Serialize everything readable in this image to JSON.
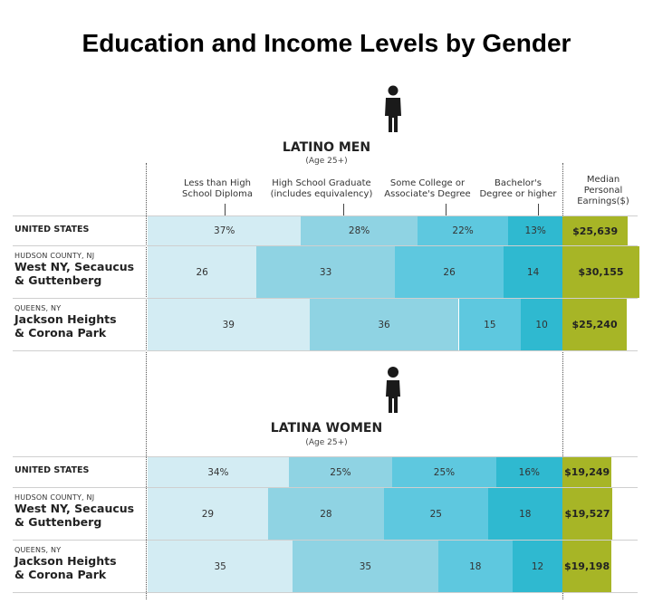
{
  "title": "Education and Income Levels by Gender",
  "colors": {
    "seg": [
      "#d3ecf3",
      "#8fd3e3",
      "#5ec8df",
      "#2fb9d0"
    ],
    "earnings": "#a7b526"
  },
  "headers": {
    "categories": [
      "Less than High School Diploma",
      "High School Graduate (includes equivalency)",
      "Some College or Associate's Degree",
      "Bachelor's Degree or higher"
    ],
    "categories_lines": [
      [
        "Less than High",
        "School Diploma"
      ],
      [
        "High School Graduate",
        "(includes equivalency)"
      ],
      [
        "Some College or",
        "Associate's Degree"
      ],
      [
        "Bachelor's",
        "Degree or higher"
      ]
    ],
    "earnings_lines": [
      "Median",
      "Personal",
      "Earnings($)"
    ]
  },
  "chart_data": [
    {
      "type": "bar",
      "title": "LATINO MEN",
      "subtitle": "(Age 25+)",
      "icon": "man-icon",
      "categories": [
        "Less than High School Diploma",
        "High School Graduate (includes equivalency)",
        "Some College or Associate's Degree",
        "Bachelor's Degree or higher"
      ],
      "rows": [
        {
          "region": "",
          "name_lines": [
            "UNITED STATES"
          ],
          "values": [
            37,
            28,
            22,
            13
          ],
          "labels": [
            "37%",
            "28%",
            "22%",
            "13%"
          ],
          "earnings": 25639,
          "earnings_label": "$25,639"
        },
        {
          "region": "HUDSON COUNTY, NJ",
          "name_lines": [
            "West NY, Secaucus",
            "& Guttenberg"
          ],
          "values": [
            26,
            33,
            26,
            14
          ],
          "labels": [
            "26",
            "33",
            "26",
            "14"
          ],
          "earnings": 30155,
          "earnings_label": "$30,155"
        },
        {
          "region": "QUEENS, NY",
          "name_lines": [
            "Jackson Heights",
            "& Corona Park"
          ],
          "values": [
            39,
            36,
            15,
            10
          ],
          "labels": [
            "39",
            "36",
            "15",
            "10"
          ],
          "earnings": 25240,
          "earnings_label": "$25,240"
        }
      ]
    },
    {
      "type": "bar",
      "title": "LATINA WOMEN",
      "subtitle": "(Age 25+)",
      "icon": "woman-icon",
      "categories": [
        "Less than High School Diploma",
        "High School Graduate (includes equivalency)",
        "Some College or Associate's Degree",
        "Bachelor's Degree or higher"
      ],
      "rows": [
        {
          "region": "",
          "name_lines": [
            "UNITED STATES"
          ],
          "values": [
            34,
            25,
            25,
            16
          ],
          "labels": [
            "34%",
            "25%",
            "25%",
            "16%"
          ],
          "earnings": 19249,
          "earnings_label": "$19,249"
        },
        {
          "region": "HUDSON COUNTY, NJ",
          "name_lines": [
            "West NY, Secaucus",
            "& Guttenberg"
          ],
          "values": [
            29,
            28,
            25,
            18
          ],
          "labels": [
            "29",
            "28",
            "25",
            "18"
          ],
          "earnings": 19527,
          "earnings_label": "$19,527"
        },
        {
          "region": "QUEENS, NY",
          "name_lines": [
            "Jackson Heights",
            "& Corona Park"
          ],
          "values": [
            35,
            35,
            18,
            12
          ],
          "labels": [
            "35",
            "35",
            "18",
            "12"
          ],
          "earnings": 19198,
          "earnings_label": "$19,198"
        }
      ]
    }
  ]
}
